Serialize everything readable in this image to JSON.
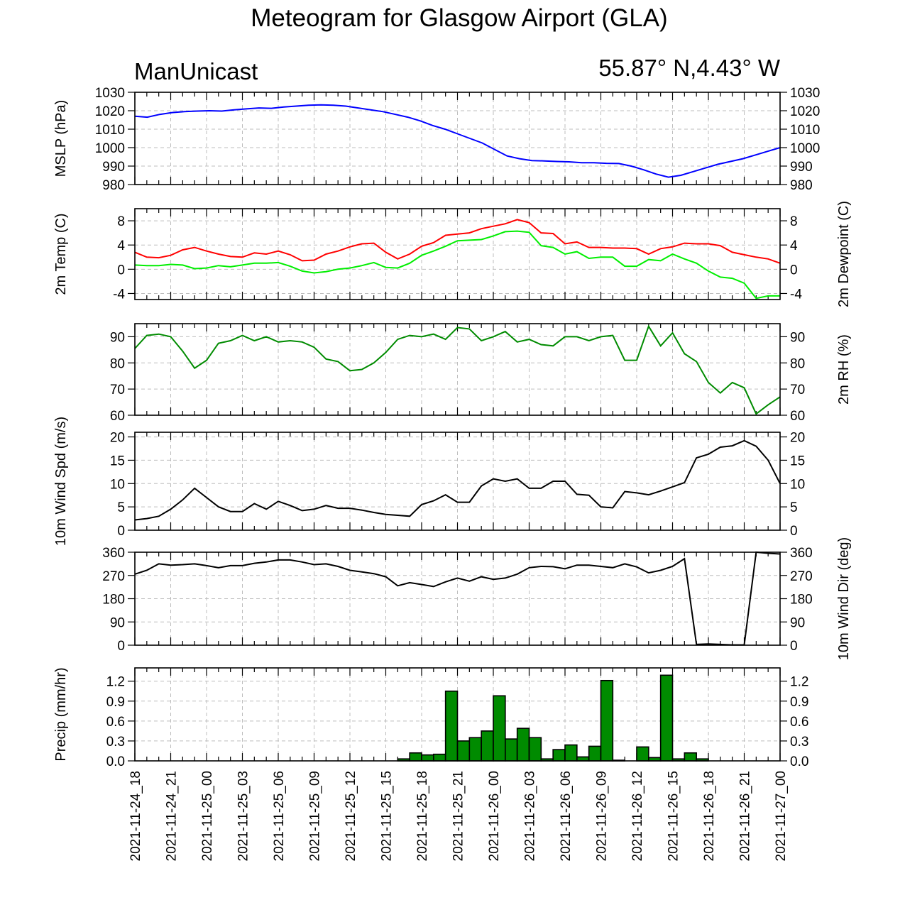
{
  "title": "Meteogram for Glasgow Airport (GLA)",
  "model": "ManUnicast",
  "location": "55.87° N,4.43° W",
  "colors": {
    "mslp": "#0000ff",
    "temp": "#ff0000",
    "dewpoint": "#00ee00",
    "rh": "#008b00",
    "wind_speed": "#000000",
    "wind_dir": "#000000",
    "precip_fill": "#008b00",
    "precip_edge": "#000000"
  },
  "chart_data": {
    "type": "line",
    "x_time_labels": [
      "2021-11-24_18",
      "2021-11-24_21",
      "2021-11-25_00",
      "2021-11-25_03",
      "2021-11-25_06",
      "2021-11-25_09",
      "2021-11-25_12",
      "2021-11-25_15",
      "2021-11-25_18",
      "2021-11-25_21",
      "2021-11-26_00",
      "2021-11-26_03",
      "2021-11-26_06",
      "2021-11-26_09",
      "2021-11-26_12",
      "2021-11-26_15",
      "2021-11-26_18",
      "2021-11-26_21",
      "2021-11-27_00"
    ],
    "panels": [
      {
        "id": "mslp",
        "type": "line",
        "left_label": "MSLP (hPa)",
        "right_label": "",
        "ylim": [
          980,
          1030
        ],
        "yticks": [
          980,
          990,
          1000,
          1010,
          1020,
          1030
        ],
        "series": [
          {
            "color_key": "mslp",
            "values": [
              1017,
              1016.5,
              1018,
              1019,
              1019.5,
              1019.8,
              1020,
              1019.8,
              1020.5,
              1021,
              1021.5,
              1021.3,
              1022,
              1022.5,
              1023,
              1023.2,
              1023,
              1022.5,
              1021.5,
              1020.5,
              1019.5,
              1018,
              1016.5,
              1014.5,
              1012,
              1010,
              1007.5,
              1005,
              1002.5,
              999,
              995.5,
              994,
              993,
              992.8,
              992.5,
              992.3,
              991.8,
              991.8,
              991.5,
              991.4,
              990,
              988,
              985.7,
              984,
              985,
              987,
              989,
              991,
              992.5,
              994,
              996,
              998,
              1000
            ]
          }
        ]
      },
      {
        "id": "temp",
        "type": "line",
        "left_label": "2m Temp (C)",
        "right_label": "2m Dewpoint (C)",
        "ylim": [
          -5,
          10
        ],
        "yticks": [
          -4,
          0,
          4,
          8
        ],
        "series": [
          {
            "color_key": "temp",
            "values": [
              2.8,
              2.0,
              1.9,
              2.3,
              3.2,
              3.6,
              3.0,
              2.5,
              2.1,
              2.0,
              2.7,
              2.5,
              3.0,
              2.4,
              1.4,
              1.5,
              2.5,
              3.0,
              3.7,
              4.2,
              4.3,
              2.8,
              1.7,
              2.5,
              3.8,
              4.4,
              5.6,
              5.8,
              6.0,
              6.7,
              7.1,
              7.5,
              8.2,
              7.7,
              6.0,
              5.9,
              4.2,
              4.5,
              3.6,
              3.6,
              3.5,
              3.5,
              3.4,
              2.5,
              3.4,
              3.7,
              4.3,
              4.2,
              4.2,
              3.9,
              2.8,
              2.4,
              2.0,
              1.7,
              1.0
            ]
          },
          {
            "color_key": "dewpoint",
            "values": [
              0.7,
              0.6,
              0.6,
              0.8,
              0.7,
              0.1,
              0.2,
              0.6,
              0.4,
              0.7,
              1.0,
              1.0,
              1.1,
              0.5,
              -0.3,
              -0.6,
              -0.4,
              0.0,
              0.2,
              0.6,
              1.1,
              0.3,
              0.2,
              1.0,
              2.3,
              3.0,
              3.8,
              4.7,
              4.8,
              4.9,
              5.5,
              6.2,
              6.3,
              6.1,
              3.9,
              3.6,
              2.5,
              2.9,
              1.8,
              2.0,
              2.0,
              0.5,
              0.5,
              1.6,
              1.4,
              2.5,
              1.7,
              1.0,
              -0.3,
              -1.3,
              -1.5,
              -2.3,
              -4.8,
              -4.4,
              -4.4
            ]
          }
        ]
      },
      {
        "id": "rh",
        "type": "line",
        "left_label": "",
        "right_label": "2m RH (%)",
        "ylim": [
          60,
          95
        ],
        "yticks": [
          60,
          70,
          80,
          90
        ],
        "series": [
          {
            "color_key": "rh",
            "values": [
              85.5,
              90.5,
              91,
              90,
              84.5,
              78,
              81,
              87.5,
              88.5,
              90.5,
              88.5,
              90,
              88,
              88.5,
              88,
              86,
              81.5,
              80.5,
              77,
              77.5,
              80,
              84,
              89,
              90.5,
              90,
              91,
              89,
              93.5,
              93,
              88.5,
              90,
              92,
              88,
              89,
              87,
              86.5,
              90,
              90,
              88.5,
              90,
              90.5,
              81,
              81,
              94,
              86.5,
              91.5,
              83.5,
              80.5,
              72.5,
              68.5,
              72.5,
              70.5,
              60.5,
              64,
              67
            ]
          }
        ]
      },
      {
        "id": "wind_speed",
        "type": "line",
        "left_label": "10m Wind Spd (m/s)",
        "right_label": "",
        "ylim": [
          0,
          21
        ],
        "yticks": [
          0,
          5,
          10,
          15,
          20
        ],
        "series": [
          {
            "color_key": "wind_speed",
            "values": [
              2.2,
              2.5,
              3,
              4.5,
              6.5,
              9,
              7,
              5,
              4,
              4,
              5.7,
              4.5,
              6.2,
              5.3,
              4.2,
              4.5,
              5.3,
              4.7,
              4.7,
              4.3,
              3.8,
              3.4,
              3.2,
              3.0,
              5.5,
              6.3,
              7.6,
              6,
              6,
              9.5,
              11,
              10.5,
              11,
              9,
              9,
              10.5,
              10.5,
              7.7,
              7.5,
              5,
              4.8,
              8.3,
              8,
              7.6,
              8.4,
              9.3,
              10.2,
              15.5,
              16.3,
              17.8,
              18.1,
              19.2,
              18,
              15,
              10
            ]
          }
        ]
      },
      {
        "id": "wind_dir",
        "type": "line",
        "left_label": "",
        "right_label": "10m Wind Dir (deg)",
        "ylim": [
          0,
          360
        ],
        "yticks": [
          0,
          90,
          180,
          270,
          360
        ],
        "series": [
          {
            "color_key": "wind_dir",
            "values": [
              275,
              290,
              315,
              310,
              312,
              315,
              308,
              300,
              308,
              308,
              317,
              322,
              330,
              330,
              322,
              312,
              315,
              305,
              290,
              284,
              277,
              265,
              230,
              242,
              235,
              227,
              245,
              260,
              248,
              265,
              255,
              260,
              275,
              300,
              305,
              304,
              296,
              310,
              310,
              305,
              300,
              315,
              303,
              280,
              290,
              305,
              335,
              3,
              5,
              3,
              1,
              1,
              360,
              356,
              353
            ]
          }
        ]
      },
      {
        "id": "precip",
        "type": "bar",
        "left_label": "Precip (mm/hr)",
        "right_label": "",
        "ylim": [
          0,
          1.4
        ],
        "yticks": [
          0.0,
          0.3,
          0.6,
          0.9,
          1.2
        ],
        "series": [
          {
            "color_key": "precip_fill",
            "values": [
              0,
              0,
              0,
              0,
              0,
              0,
              0,
              0,
              0,
              0,
              0,
              0,
              0,
              0,
              0,
              0,
              0,
              0,
              0,
              0,
              0,
              0,
              0.03,
              0.12,
              0.09,
              0.1,
              1.05,
              0.3,
              0.35,
              0.45,
              0.98,
              0.33,
              0.49,
              0.35,
              0.03,
              0.17,
              0.24,
              0.06,
              0.22,
              1.21,
              0.01,
              0,
              0.21,
              0.05,
              1.29,
              0.03,
              0.12,
              0.03,
              0,
              0,
              0,
              0,
              0,
              0
            ]
          }
        ]
      }
    ]
  }
}
